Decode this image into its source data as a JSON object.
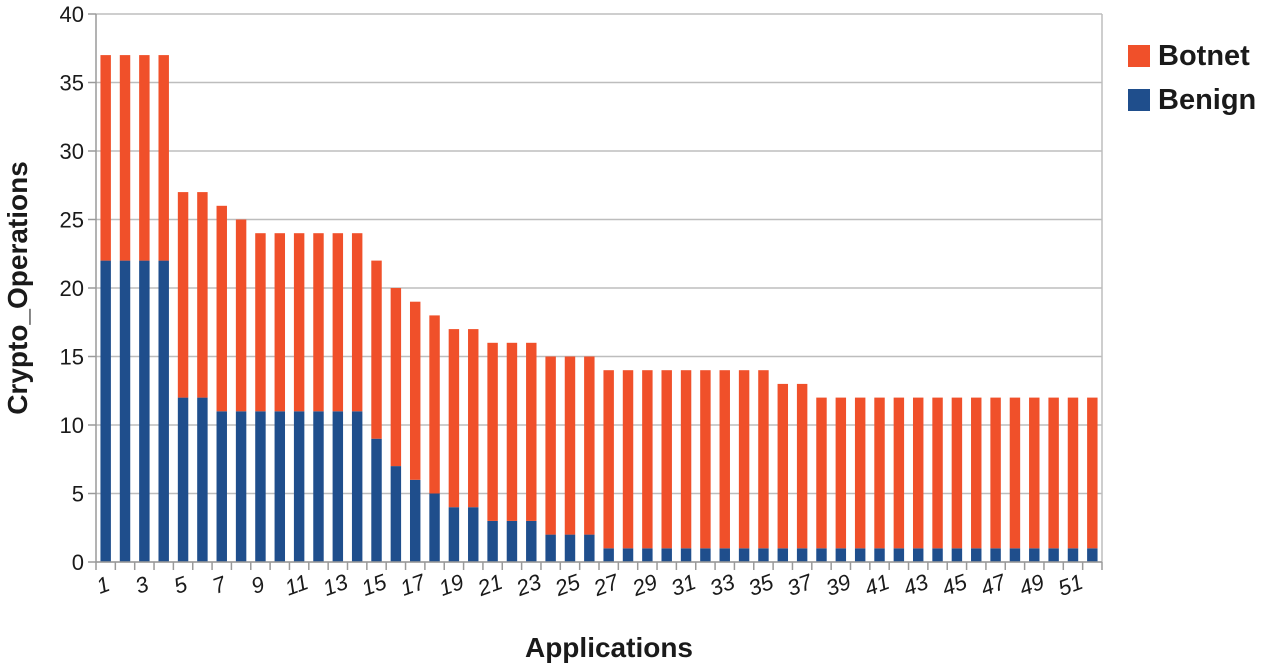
{
  "chart_data": {
    "type": "bar",
    "stacked": true,
    "title": "",
    "xlabel": "Applications",
    "ylabel": "Crypto_Operations",
    "ylim": [
      0,
      40
    ],
    "yticks": [
      0,
      5,
      10,
      15,
      20,
      25,
      30,
      35,
      40
    ],
    "grid": true,
    "legend_position": "top-right",
    "categories": [
      1,
      2,
      3,
      4,
      5,
      6,
      7,
      8,
      9,
      10,
      11,
      12,
      13,
      14,
      15,
      16,
      17,
      18,
      19,
      20,
      21,
      22,
      23,
      24,
      25,
      26,
      27,
      28,
      29,
      30,
      31,
      32,
      33,
      34,
      35,
      36,
      37,
      38,
      39,
      40,
      41,
      42,
      43,
      44,
      45,
      46,
      47,
      48,
      49,
      50,
      51,
      52
    ],
    "xtick_labels_shown": [
      "1",
      "3",
      "5",
      "7",
      "9",
      "11",
      "13",
      "15",
      "17",
      "19",
      "21",
      "23",
      "25",
      "27",
      "29",
      "31",
      "33",
      "35",
      "37",
      "39",
      "41",
      "43",
      "45",
      "47",
      "49",
      "51"
    ],
    "series": [
      {
        "name": "Benign",
        "color": "#1f4e8c",
        "values": [
          22,
          22,
          22,
          22,
          12,
          12,
          11,
          11,
          11,
          11,
          11,
          11,
          11,
          11,
          9,
          7,
          6,
          5,
          4,
          4,
          3,
          3,
          3,
          2,
          2,
          2,
          1,
          1,
          1,
          1,
          1,
          1,
          1,
          1,
          1,
          1,
          1,
          1,
          1,
          1,
          1,
          1,
          1,
          1,
          1,
          1,
          1,
          1,
          1,
          1,
          1,
          1
        ]
      },
      {
        "name": "Botnet",
        "color": "#f0502a",
        "values": [
          15,
          15,
          15,
          15,
          15,
          15,
          15,
          14,
          13,
          13,
          13,
          13,
          13,
          13,
          13,
          13,
          13,
          13,
          13,
          13,
          13,
          13,
          13,
          13,
          13,
          13,
          13,
          13,
          13,
          13,
          13,
          13,
          13,
          13,
          13,
          12,
          12,
          11,
          11,
          11,
          11,
          11,
          11,
          11,
          11,
          11,
          11,
          11,
          11,
          11,
          11,
          11
        ]
      }
    ]
  }
}
